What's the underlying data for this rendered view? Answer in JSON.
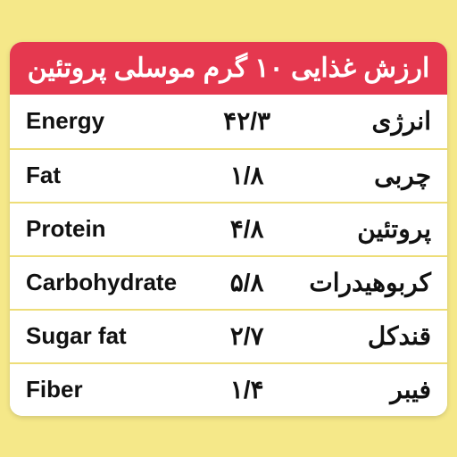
{
  "header": {
    "text": "ارزش غذایی ۱۰ گرم موسلی پروتئین",
    "bg_color": "#e5384f",
    "text_color": "#ffffff",
    "fontsize": 30
  },
  "table": {
    "row_bg": "#ffffff",
    "border_color": "#eedd77",
    "text_color": "#111111",
    "en_fontsize": 26,
    "fa_fontsize": 28,
    "val_fontsize": 28,
    "rows": [
      {
        "en": "Energy",
        "val": "۴۲/۳",
        "fa": "انرژی"
      },
      {
        "en": "Fat",
        "val": "۱/۸",
        "fa": "چربی"
      },
      {
        "en": "Protein",
        "val": "۴/۸",
        "fa": "پروتئین"
      },
      {
        "en": "Carbohydrate",
        "val": "۵/۸",
        "fa": "کربوهیدرات"
      },
      {
        "en": "Sugar fat",
        "val": "۲/۷",
        "fa": "قندکل"
      },
      {
        "en": "Fiber",
        "val": "۱/۴",
        "fa": "فیبر"
      }
    ]
  },
  "page": {
    "bg_color": "#f5e889"
  }
}
